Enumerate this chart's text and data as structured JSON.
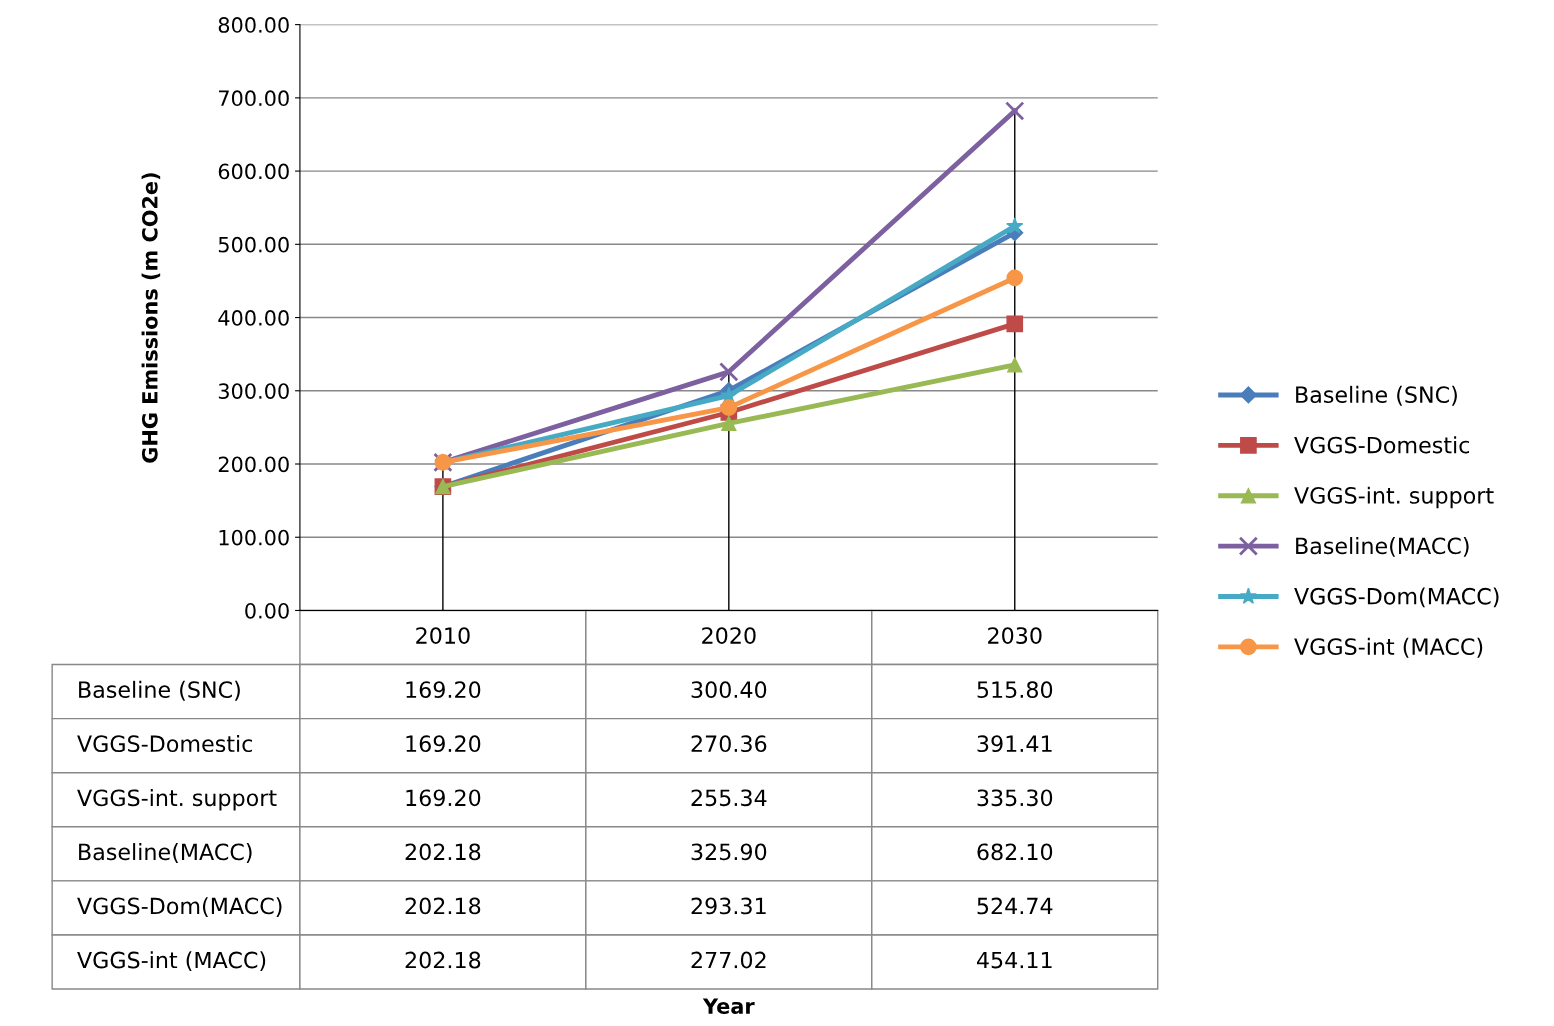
{
  "chart_data": {
    "type": "line",
    "annotations": [
      "Year"
    ],
    "ylabel": "GHG Emissions (m CO2e)",
    "categories": [
      "2010",
      "2020",
      "2030"
    ],
    "ylim": [
      0,
      800
    ],
    "yticks": [
      {
        "value": 0,
        "label": "0.00"
      },
      {
        "value": 100,
        "label": "100.00"
      },
      {
        "value": 200,
        "label": "200.00"
      },
      {
        "value": 300,
        "label": "300.00"
      },
      {
        "value": 400,
        "label": "400.00"
      },
      {
        "value": 500,
        "label": "500.00"
      },
      {
        "value": 600,
        "label": "600.00"
      },
      {
        "value": 700,
        "label": "700.00"
      },
      {
        "value": 800,
        "label": "800.00"
      }
    ],
    "grid": "y",
    "legend": "right",
    "ref_lines": [
      {
        "axis": "x",
        "value": "2010",
        "color": "#000000"
      },
      {
        "axis": "x",
        "value": "2020",
        "color": "#000000"
      },
      {
        "axis": "x",
        "value": "2030",
        "color": "#000000"
      }
    ],
    "series": [
      {
        "name": "Baseline (SNC)",
        "color": "#4a7ebb",
        "marker": "diamond",
        "values": [
          169.2,
          300.4,
          515.8
        ],
        "value_labels": [
          "169.20",
          "300.40",
          "515.80"
        ]
      },
      {
        "name": "VGGS-Domestic",
        "color": "#be4b48",
        "marker": "square",
        "values": [
          169.2,
          270.36,
          391.41
        ],
        "value_labels": [
          "169.20",
          "270.36",
          "391.41"
        ]
      },
      {
        "name": "VGGS-int. support",
        "color": "#98b954",
        "marker": "triangle",
        "values": [
          169.2,
          255.34,
          335.3
        ],
        "value_labels": [
          "169.20",
          "255.34",
          "335.30"
        ]
      },
      {
        "name": "Baseline(MACC)",
        "color": "#7d60a0",
        "marker": "cross",
        "values": [
          202.18,
          325.9,
          682.1
        ],
        "value_labels": [
          "202.18",
          "325.90",
          "682.10"
        ]
      },
      {
        "name": "VGGS-Dom(MACC)",
        "color": "#46aac5",
        "marker": "star",
        "values": [
          202.18,
          293.31,
          524.74
        ],
        "value_labels": [
          "202.18",
          "293.31",
          "524.74"
        ]
      },
      {
        "name": "VGGS-int (MACC)",
        "color": "#f79646",
        "marker": "circle",
        "values": [
          202.18,
          277.02,
          454.11
        ],
        "value_labels": [
          "202.18",
          "277.02",
          "454.11"
        ]
      }
    ]
  }
}
